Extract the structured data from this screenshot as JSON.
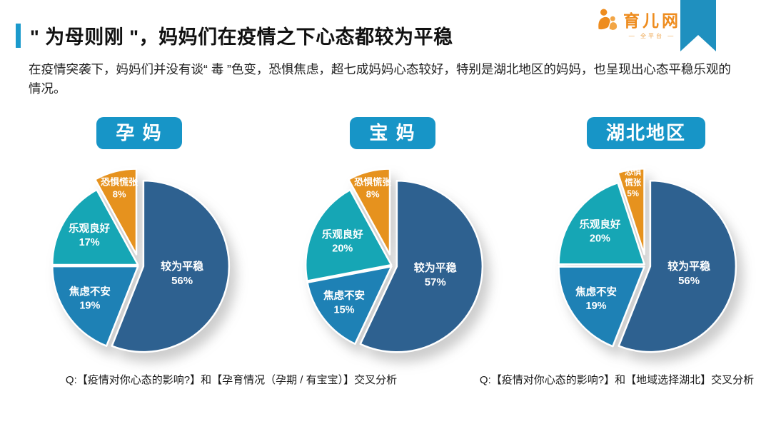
{
  "header": {
    "title": "\" 为母则刚 \"，妈妈们在疫情之下心态都较为平稳",
    "subtitle": "在疫情突袭下，妈妈们并没有谈“ 毒 ”色变，恐惧焦虑，超七成妈妈心态较好，特别是湖北地区的妈妈，也呈现出心态平稳乐观的情况。",
    "accent_color": "#1b9acc",
    "ribbon_color": "#1f90bf",
    "logo": {
      "name": "育儿网",
      "tagline": "— 全平台 —",
      "color": "#ee8c1e"
    }
  },
  "badge_color": "#1795c7",
  "chart_data": [
    {
      "type": "pie",
      "badge_label": "孕 妈",
      "title": "孕妈",
      "labels": [
        "较为平稳",
        "焦虑不安",
        "乐观良好",
        "恐惧慌张"
      ],
      "ids": [
        "calm-stable",
        "anxious-uneasy",
        "optimistic-good",
        "fearful-panic"
      ],
      "values": [
        56,
        19,
        17,
        8
      ],
      "colors": [
        "#2e6190",
        "#1e81b5",
        "#16a6b5",
        "#e6921e"
      ],
      "label_lines": [
        [
          "较为平稳",
          "56%"
        ],
        [
          "焦虑不安",
          "19%"
        ],
        [
          "乐观良好",
          "17%"
        ],
        [
          "恐惧慌张",
          "8%"
        ]
      ],
      "layout": {
        "start_angle": 0,
        "clockwise": true,
        "explode": [
          6,
          2,
          2,
          16
        ],
        "label_r": [
          0.46,
          0.68,
          0.66,
          0.8
        ],
        "label_size": [
          15,
          14.5,
          14.5,
          13
        ]
      }
    },
    {
      "type": "pie",
      "badge_label": "宝 妈",
      "title": "宝妈",
      "labels": [
        "较为平稳",
        "焦虑不安",
        "乐观良好",
        "恐惧慌张"
      ],
      "ids": [
        "calm-stable",
        "anxious-uneasy",
        "optimistic-good",
        "fearful-panic"
      ],
      "values": [
        57,
        15,
        20,
        8
      ],
      "colors": [
        "#2e6190",
        "#1e81b5",
        "#16a6b5",
        "#e6921e"
      ],
      "label_lines": [
        [
          "较为平稳",
          "57%"
        ],
        [
          "焦虑不安",
          "15%"
        ],
        [
          "乐观良好",
          "20%"
        ],
        [
          "恐惧慌张",
          "8%"
        ]
      ],
      "layout": {
        "start_angle": 0,
        "clockwise": true,
        "explode": [
          6,
          2,
          2,
          16
        ],
        "label_r": [
          0.46,
          0.7,
          0.63,
          0.8
        ],
        "label_size": [
          15,
          14.5,
          14.5,
          13
        ]
      }
    },
    {
      "type": "pie",
      "badge_label": "湖北地区",
      "title": "湖北地区",
      "labels": [
        "较为平稳",
        "焦虑不安",
        "乐观良好",
        "恐惧慌张"
      ],
      "ids": [
        "calm-stable",
        "anxious-uneasy",
        "optimistic-good",
        "fearful-panic"
      ],
      "values": [
        56,
        19,
        20,
        5
      ],
      "colors": [
        "#2e6190",
        "#1e81b5",
        "#16a6b5",
        "#e6921e"
      ],
      "label_lines": [
        [
          "较为平稳",
          "56%"
        ],
        [
          "焦虑不安",
          "19%"
        ],
        [
          "乐观良好",
          "20%"
        ],
        [
          "恐惧",
          "慌张",
          "5%"
        ]
      ],
      "layout": {
        "start_angle": 0,
        "clockwise": true,
        "explode": [
          6,
          3,
          3,
          16
        ],
        "label_r": [
          0.46,
          0.68,
          0.64,
          0.84
        ],
        "label_size": [
          15,
          14.5,
          14.5,
          11.5
        ]
      }
    }
  ],
  "footnotes": [
    "Q:【疫情对你心态的影响?】和【孕育情况（孕期 / 有宝宝）】交叉分析",
    "Q:【疫情对你心态的影响?】和【地域选择湖北】交叉分析"
  ]
}
